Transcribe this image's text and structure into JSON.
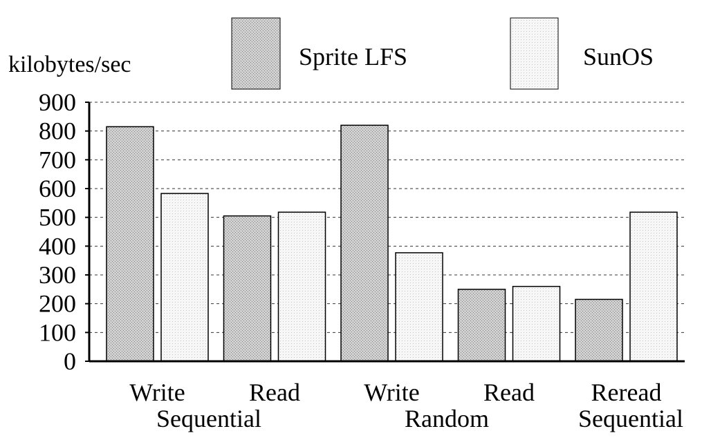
{
  "ylabel": "kilobytes/sec",
  "legend": {
    "items": [
      {
        "name": "Sprite LFS",
        "pattern": "dark"
      },
      {
        "name": "SunOS",
        "pattern": "light"
      }
    ]
  },
  "colors": {
    "sprite_fill": "#c8c8c8",
    "sunos_fill": "#f2f2f2",
    "stroke": "#000000",
    "grid": "#333333"
  },
  "chart_data": {
    "type": "bar",
    "ylabel": "kilobytes/sec",
    "ylim": [
      0,
      900
    ],
    "yticks": [
      0,
      100,
      200,
      300,
      400,
      500,
      600,
      700,
      800,
      900
    ],
    "grid": "horizontal-dashed",
    "legend_position": "top",
    "categories": [
      "Write",
      "Read",
      "Write",
      "Read",
      "Reread"
    ],
    "groups": [
      {
        "label": "Sequential",
        "categories": [
          "Write",
          "Read"
        ]
      },
      {
        "label": "Random",
        "categories": [
          "Write",
          "Read"
        ]
      },
      {
        "label": "Sequential",
        "categories": [
          "Reread"
        ]
      }
    ],
    "series": [
      {
        "name": "Sprite LFS",
        "values": [
          815,
          505,
          820,
          250,
          215
        ]
      },
      {
        "name": "SunOS",
        "values": [
          583,
          518,
          377,
          260,
          518
        ]
      }
    ]
  }
}
